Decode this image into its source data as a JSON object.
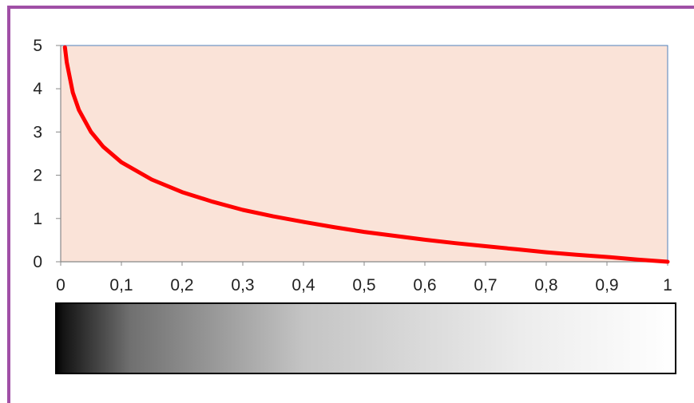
{
  "colors": {
    "frame": "#a04fa6",
    "plot_background": "#fae3d8",
    "plot_border": "#4f81bd",
    "curve": "#ff0000",
    "axis": "#888888",
    "gradient_start": "#000000",
    "gradient_end": "#ffffff"
  },
  "chart_data": {
    "type": "line",
    "title": "",
    "xlabel": "",
    "ylabel": "",
    "xlim": [
      0,
      1
    ],
    "ylim": [
      0,
      5
    ],
    "grid": false,
    "x_ticks": [
      "0",
      "0,1",
      "0,2",
      "0,3",
      "0,4",
      "0,5",
      "0,6",
      "0,7",
      "0,8",
      "0,9",
      "1"
    ],
    "y_ticks": [
      "0",
      "1",
      "2",
      "3",
      "4",
      "5"
    ],
    "series": [
      {
        "x": [
          0.007,
          0.01,
          0.02,
          0.03,
          0.05,
          0.07,
          0.1,
          0.15,
          0.2,
          0.25,
          0.3,
          0.35,
          0.4,
          0.45,
          0.5,
          0.55,
          0.6,
          0.65,
          0.7,
          0.75,
          0.8,
          0.85,
          0.9,
          0.95,
          1.0
        ],
        "y": [
          4.96,
          4.61,
          3.91,
          3.51,
          3.0,
          2.66,
          2.3,
          1.9,
          1.61,
          1.39,
          1.2,
          1.05,
          0.92,
          0.8,
          0.69,
          0.6,
          0.51,
          0.43,
          0.36,
          0.29,
          0.22,
          0.16,
          0.11,
          0.05,
          0.0
        ]
      }
    ],
    "colorbar": {
      "range": [
        0,
        1
      ],
      "from": "black",
      "to": "white"
    }
  }
}
